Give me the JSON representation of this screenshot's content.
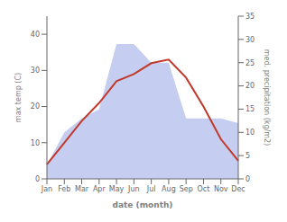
{
  "chart_data": {
    "type": "line",
    "xlabel": "date (month)",
    "ylabel": "max temp (C)",
    "y2label": "med. precipitation (kg/m2)",
    "categories": [
      "Jan",
      "Feb",
      "Mar",
      "Apr",
      "May",
      "Jun",
      "Jul",
      "Aug",
      "Sep",
      "Oct",
      "Nov",
      "Dec"
    ],
    "series": [
      {
        "type": "area",
        "axis": "y2",
        "color": "#c5cef0",
        "values": [
          3,
          10,
          13,
          15,
          29,
          29,
          25,
          25,
          13,
          13,
          13,
          12
        ]
      },
      {
        "type": "line",
        "color": "#c0392b",
        "values": [
          4,
          10,
          16,
          21,
          27,
          29,
          32,
          33,
          28,
          20,
          11,
          5
        ]
      }
    ],
    "ylim": [
      0,
      45
    ],
    "yticks": [
      0,
      10,
      20,
      30,
      40
    ],
    "y2lim": [
      0,
      35
    ],
    "y2ticks": [
      0,
      5,
      10,
      15,
      20,
      25,
      30,
      35
    ],
    "grid": false
  }
}
